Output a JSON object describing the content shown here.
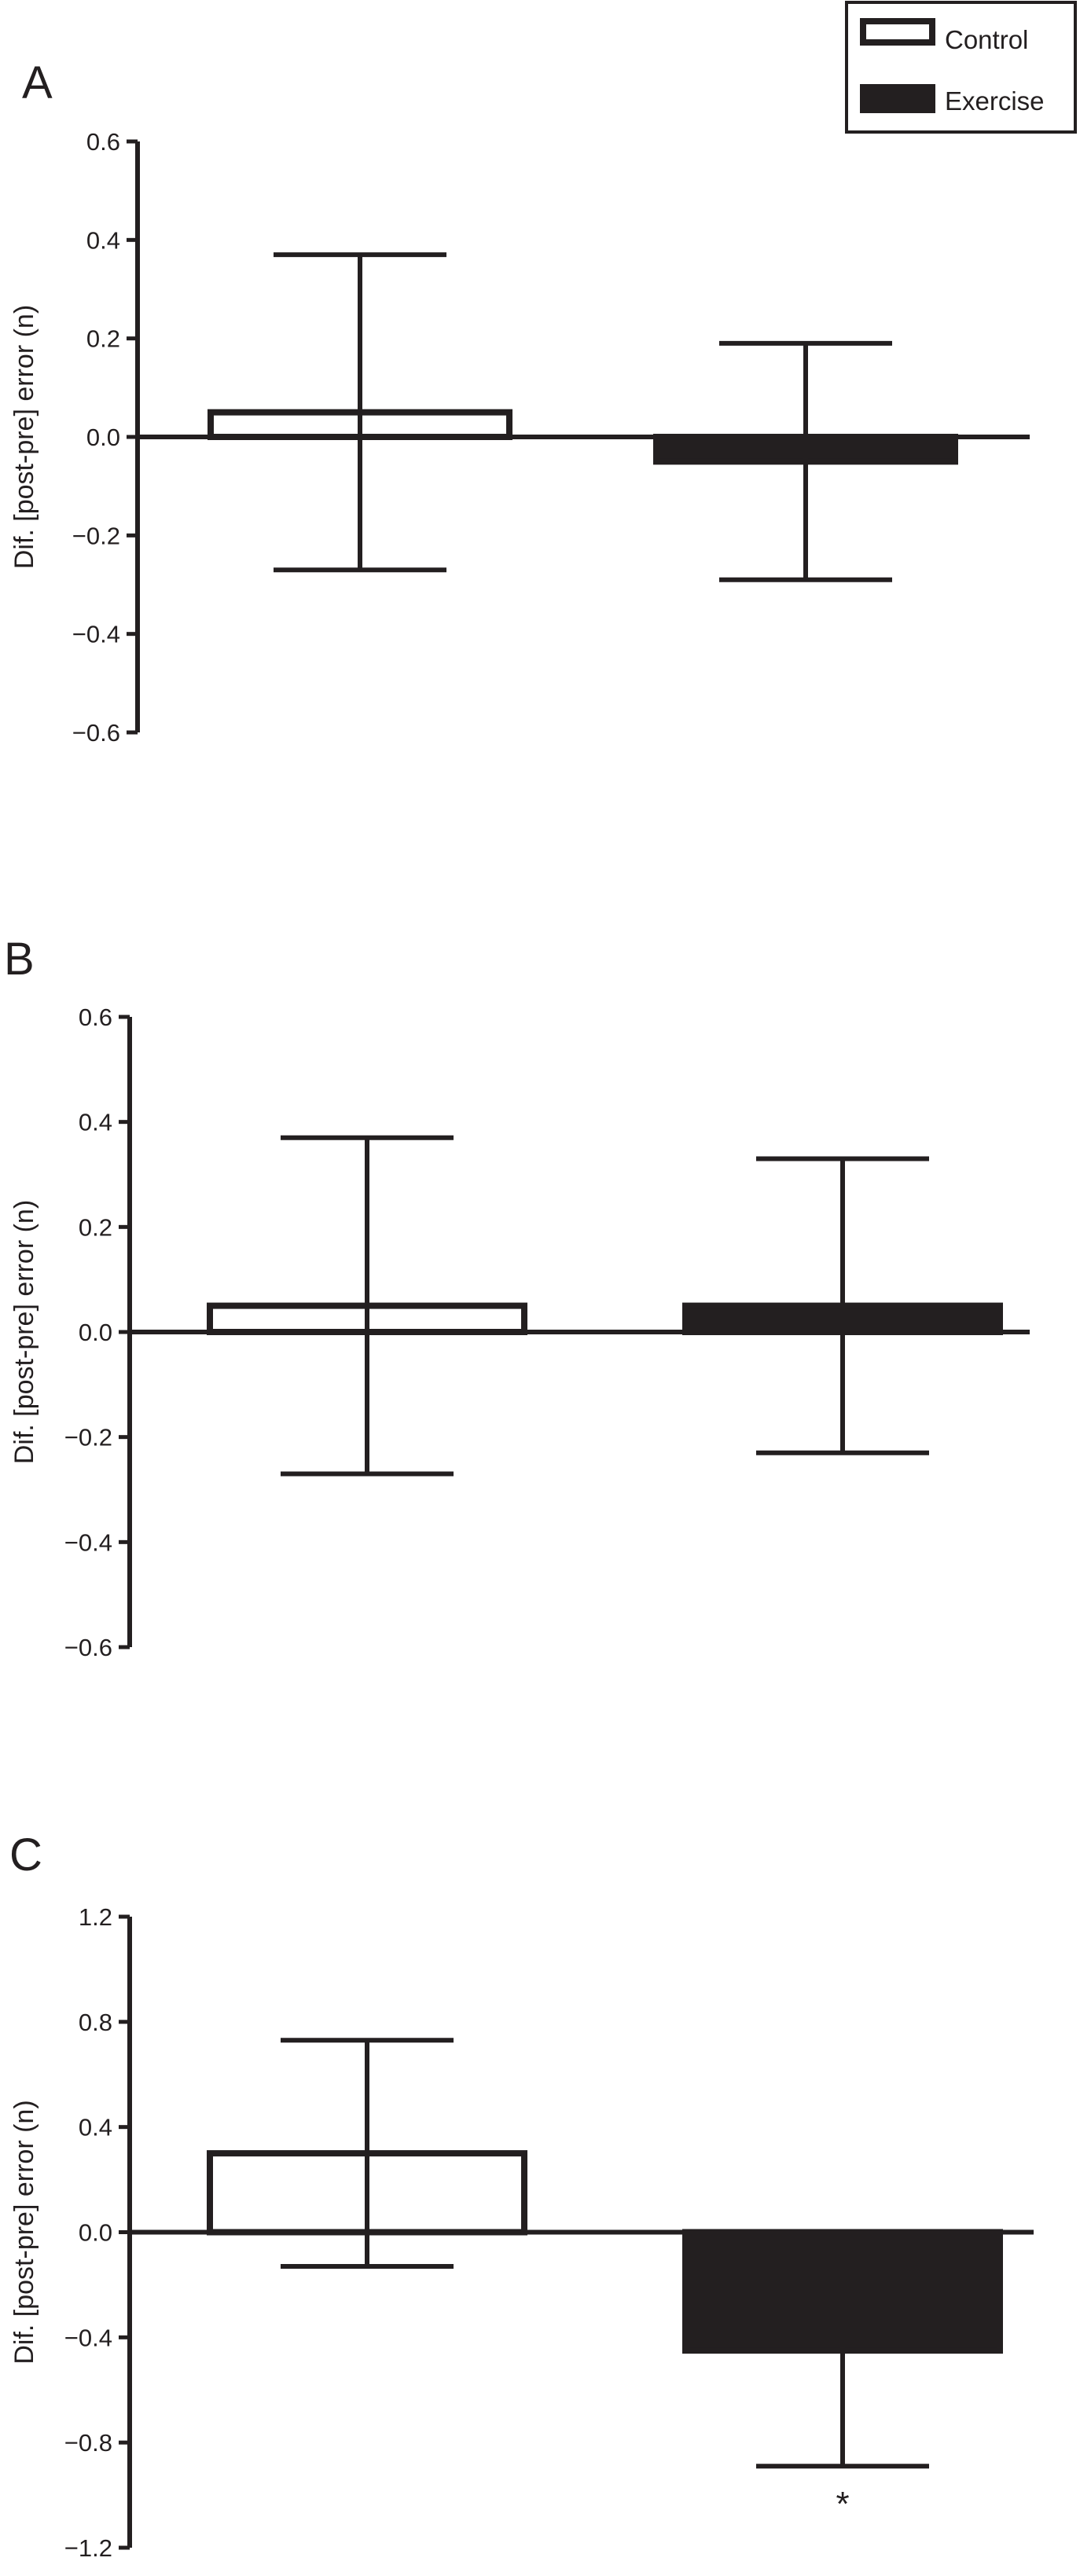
{
  "legend": {
    "position": "top-right",
    "items": [
      {
        "label": "Control",
        "style": "open"
      },
      {
        "label": "Exercise",
        "style": "filled"
      }
    ]
  },
  "colors": {
    "ink": "#231f20",
    "control_fill": "#ffffff",
    "exercise_fill": "#231f20"
  },
  "chart_data": [
    {
      "panel": "A",
      "type": "bar",
      "ylabel": "Dif. [post-pre] error (n)",
      "ylim": [
        -0.6,
        0.6
      ],
      "yticks": [
        0.6,
        0.4,
        0.2,
        0.0,
        -0.2,
        -0.4,
        -0.6
      ],
      "tick_labels": [
        "0.6",
        "0.4",
        "0.2",
        "0.0",
        "−0.2",
        "−0.4",
        "−0.6"
      ],
      "categories": [
        "Control",
        "Exercise"
      ],
      "values": [
        0.05,
        -0.05
      ],
      "error_upper": [
        0.37,
        0.19
      ],
      "error_lower": [
        -0.27,
        -0.29
      ],
      "annotations": []
    },
    {
      "panel": "B",
      "type": "bar",
      "ylabel": "Dif. [post-pre] error (n)",
      "ylim": [
        -0.6,
        0.6
      ],
      "yticks": [
        0.6,
        0.4,
        0.2,
        0.0,
        -0.2,
        -0.4,
        -0.6
      ],
      "tick_labels": [
        "0.6",
        "0.4",
        "0.2",
        "0.0",
        "−0.2",
        "−0.4",
        "−0.6"
      ],
      "categories": [
        "Control",
        "Exercise"
      ],
      "values": [
        0.05,
        0.05
      ],
      "error_upper": [
        0.37,
        0.33
      ],
      "error_lower": [
        -0.27,
        -0.23
      ],
      "annotations": []
    },
    {
      "panel": "C",
      "type": "bar",
      "ylabel": "Dif. [post-pre] error (n)",
      "ylim": [
        -1.2,
        1.2
      ],
      "yticks": [
        1.2,
        0.8,
        0.4,
        0.0,
        -0.4,
        -0.8,
        -1.2
      ],
      "tick_labels": [
        "1.2",
        "0.8",
        "0.4",
        "0.0",
        "−0.4",
        "−0.8",
        "−1.2"
      ],
      "categories": [
        "Control",
        "Exercise"
      ],
      "values": [
        0.3,
        -0.45
      ],
      "error_upper": [
        0.73,
        0.0
      ],
      "error_lower": [
        -0.13,
        -0.89
      ],
      "annotations": [
        {
          "text": "*",
          "category": "Exercise",
          "y": -1.0
        }
      ]
    }
  ]
}
